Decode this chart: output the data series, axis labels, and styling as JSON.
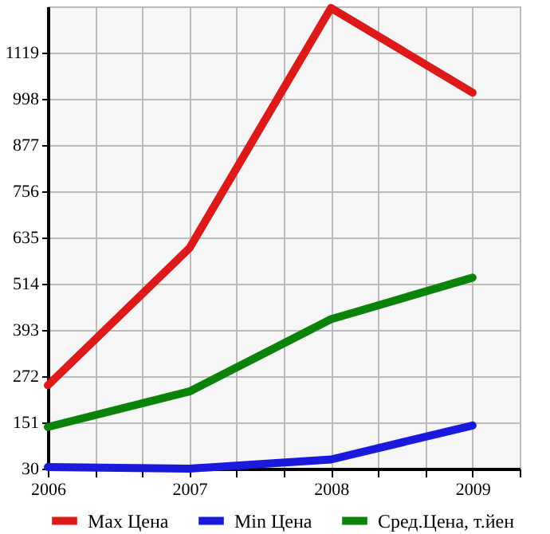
{
  "chart_data": {
    "type": "line",
    "x": [
      2006,
      2007,
      2008,
      2009
    ],
    "series": [
      {
        "name": "Max Цена",
        "color": "#dd1a1a",
        "values": [
          248,
          607,
          1236,
          1014
        ]
      },
      {
        "name": "Min Цена",
        "color": "#1a1add",
        "values": [
          34,
          30,
          54,
          143
        ]
      },
      {
        "name": "Сред.Цена, т.йен",
        "color": "#0b830b",
        "values": [
          139,
          232,
          421,
          530
        ]
      }
    ],
    "xlim": [
      2006,
      2009.333
    ],
    "xticks": [
      2006,
      {
        "value": 2006.333,
        "label": null
      },
      {
        "value": 2006.667,
        "label": null
      },
      2007,
      {
        "value": 2007.333,
        "label": null
      },
      {
        "value": 2007.667,
        "label": null
      },
      2008,
      {
        "value": 2008.333,
        "label": null
      },
      {
        "value": 2008.667,
        "label": null
      },
      2009,
      {
        "value": 2009.333,
        "label": null
      }
    ],
    "ylim": [
      30,
      1240
    ],
    "yticks": [
      30,
      151,
      272,
      393,
      514,
      635,
      756,
      877,
      998,
      1119
    ],
    "grid": true,
    "legend": "bottom",
    "marker": "none",
    "line_style": "solid"
  }
}
